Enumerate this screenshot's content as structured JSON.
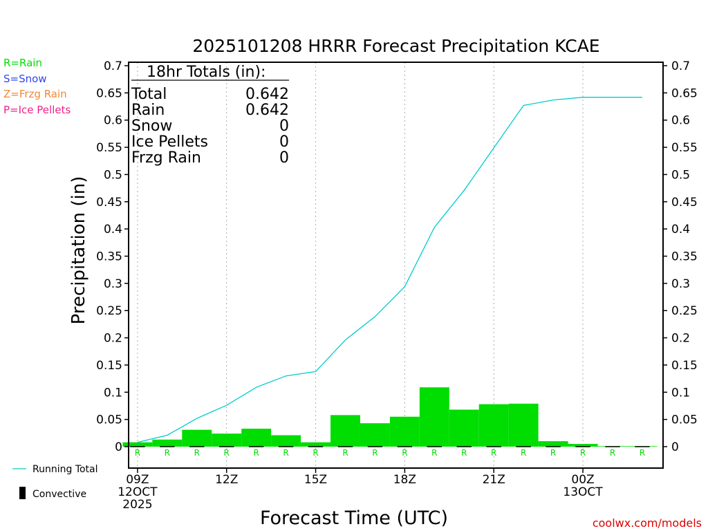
{
  "chart_data": {
    "type": "bar",
    "title": "2025101208 HRRR Forecast Precipitation KCAE",
    "xlabel": "Forecast Time (UTC)",
    "ylabel": "Precipitation (in)",
    "ylim": [
      0,
      0.7
    ],
    "yticks": [
      0,
      0.05,
      0.1,
      0.15,
      0.2,
      0.25,
      0.3,
      0.35,
      0.4,
      0.45,
      0.5,
      0.55,
      0.6,
      0.65,
      0.7
    ],
    "ytick_labels": [
      "0",
      "0.05",
      "0.1",
      "0.15",
      "0.2",
      "0.25",
      "0.3",
      "0.35",
      "0.4",
      "0.45",
      "0.5",
      "0.55",
      "0.6",
      "0.65",
      "0.7"
    ],
    "xlim": [
      8.7,
      26.7
    ],
    "xticks": [
      {
        "hour": 9,
        "lines": [
          "09Z",
          "12OCT",
          "2025"
        ]
      },
      {
        "hour": 12,
        "lines": [
          "12Z"
        ]
      },
      {
        "hour": 15,
        "lines": [
          "15Z"
        ]
      },
      {
        "hour": 18,
        "lines": [
          "18Z"
        ]
      },
      {
        "hour": 21,
        "lines": [
          "21Z"
        ]
      },
      {
        "hour": 24,
        "lines": [
          "00Z",
          "13OCT"
        ]
      }
    ],
    "hours": [
      9,
      10,
      11,
      12,
      13,
      14,
      15,
      16,
      17,
      18,
      19,
      20,
      21,
      22,
      23,
      24,
      25,
      26
    ],
    "series": [
      {
        "name": "Rain (hourly)",
        "type": "bar",
        "color": "#00dd00",
        "values": [
          0.008,
          0.013,
          0.031,
          0.024,
          0.033,
          0.021,
          0.008,
          0.058,
          0.043,
          0.055,
          0.109,
          0.068,
          0.078,
          0.079,
          0.01,
          0.005,
          0.001,
          0.001
        ]
      },
      {
        "name": "Running Total",
        "type": "line",
        "color": "#00cccc",
        "values": [
          0.008,
          0.021,
          0.052,
          0.076,
          0.109,
          0.13,
          0.138,
          0.196,
          0.239,
          0.294,
          0.403,
          0.471,
          0.549,
          0.627,
          0.637,
          0.642,
          0.642,
          0.642
        ]
      }
    ],
    "ptype_markers": [
      "R",
      "R",
      "R",
      "R",
      "R",
      "R",
      "R",
      "R",
      "R",
      "R",
      "R",
      "R",
      "R",
      "R",
      "R",
      "R",
      "R",
      "R"
    ],
    "legend_ptypes": [
      {
        "text": "R=Rain",
        "color": "#00dd00"
      },
      {
        "text": "S=Snow",
        "color": "#3344ee"
      },
      {
        "text": "Z=Frzg Rain",
        "color": "#ee8833"
      },
      {
        "text": "P=Ice Pellets",
        "color": "#ee2288"
      }
    ],
    "legend_bottom": {
      "running_total": "Running Total",
      "convective": "Convective"
    },
    "totals": {
      "header": "18hr Totals (in):",
      "rows": [
        {
          "label": "Total",
          "value": "0.642"
        },
        {
          "label": "Rain",
          "value": "0.642"
        },
        {
          "label": "Snow",
          "value": "0"
        },
        {
          "label": "Ice Pellets",
          "value": "0"
        },
        {
          "label": "Frzg Rain",
          "value": "0"
        }
      ]
    },
    "credit": "coolwx.com/models",
    "colors": {
      "bar": "#00dd00",
      "line": "#00cccc",
      "grid": "#aaaaaa",
      "credit": "#dd0000"
    }
  }
}
